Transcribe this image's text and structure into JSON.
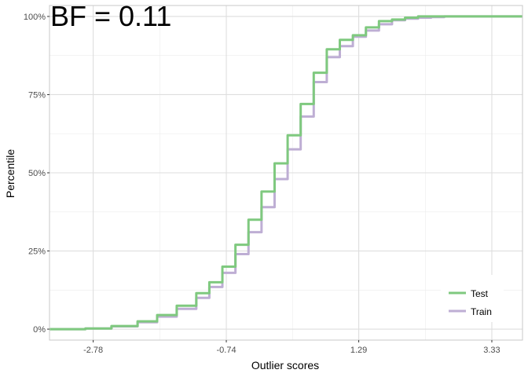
{
  "chart_data": {
    "type": "line",
    "annotation": "BF = 0.11",
    "xlabel": "Outlier scores",
    "ylabel": "Percentile",
    "xlim": [
      -3.45,
      3.8
    ],
    "ylim": [
      -0.035,
      1.035
    ],
    "x_ticks": [
      -2.78,
      -0.74,
      1.29,
      3.33
    ],
    "x_tick_labels": [
      "-2.78",
      "-0.74",
      "1.29",
      "3.33"
    ],
    "y_ticks": [
      0,
      0.25,
      0.5,
      0.75,
      1.0
    ],
    "y_tick_labels": [
      "0%",
      "25%",
      "50%",
      "75%",
      "100%"
    ],
    "grid": true,
    "legend_position": "bottom-right",
    "series": [
      {
        "name": "Test",
        "color": "#7fc97f",
        "x": [
          -3.45,
          -2.9,
          -2.5,
          -2.1,
          -1.8,
          -1.5,
          -1.2,
          -1.0,
          -0.8,
          -0.6,
          -0.4,
          -0.2,
          0.0,
          0.2,
          0.4,
          0.6,
          0.8,
          1.0,
          1.2,
          1.4,
          1.6,
          1.8,
          2.0,
          2.2,
          2.4,
          2.6,
          2.8,
          3.0,
          3.8
        ],
        "y": [
          0.0,
          0.002,
          0.01,
          0.025,
          0.045,
          0.075,
          0.115,
          0.15,
          0.2,
          0.27,
          0.35,
          0.44,
          0.53,
          0.62,
          0.72,
          0.82,
          0.895,
          0.925,
          0.94,
          0.965,
          0.985,
          0.99,
          0.996,
          1.0,
          1.0,
          1.0,
          1.0,
          1.0,
          1.0
        ]
      },
      {
        "name": "Train",
        "color": "#beaed4",
        "x": [
          -3.45,
          -2.9,
          -2.5,
          -2.1,
          -1.8,
          -1.5,
          -1.2,
          -1.0,
          -0.8,
          -0.6,
          -0.4,
          -0.2,
          0.0,
          0.2,
          0.4,
          0.6,
          0.8,
          1.0,
          1.2,
          1.4,
          1.6,
          1.8,
          2.0,
          2.2,
          2.4,
          2.6,
          2.8,
          3.0,
          3.8
        ],
        "y": [
          0.0,
          0.002,
          0.009,
          0.022,
          0.04,
          0.065,
          0.1,
          0.135,
          0.18,
          0.24,
          0.31,
          0.39,
          0.48,
          0.575,
          0.68,
          0.79,
          0.87,
          0.905,
          0.935,
          0.955,
          0.975,
          0.988,
          0.993,
          0.996,
          0.998,
          1.0,
          1.0,
          1.0,
          1.0
        ]
      }
    ]
  }
}
